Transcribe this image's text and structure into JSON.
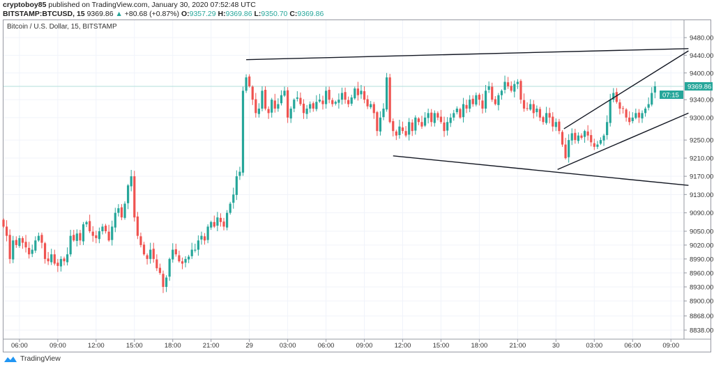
{
  "header": {
    "author": "cryptoboy85",
    "published_text": "published on TradingView.com, January 30, 2020 07:52:48 UTC",
    "symbol": "BITSTAMP:BTCUSD, 15",
    "last": "9369.86",
    "change": "+80.68 (+0.87%)",
    "o_label": "O:",
    "o": "9357.29",
    "h_label": "H:",
    "h": "9369.86",
    "l_label": "L:",
    "l": "9350.70",
    "c_label": "C:",
    "c": "9369.86"
  },
  "legend": "Bitcoin / U.S. Dollar, 15, BITSTAMP",
  "price_label": {
    "value": "9369.86",
    "countdown": "07:15",
    "color": "#26a69a"
  },
  "colors": {
    "up": "#26a69a",
    "down": "#ef5350",
    "grid": "#f0f3fa",
    "trendline": "#131722"
  },
  "footer": {
    "brand": "TradingView"
  },
  "chart_data": {
    "type": "candlestick",
    "interval": "15",
    "yscale": "log",
    "ylim": [
      8838,
      9480
    ],
    "y_ticks": [
      "9480.00",
      "9440.00",
      "9400.00",
      "9340.00",
      "9300.00",
      "9250.00",
      "9210.00",
      "9170.00",
      "9130.00",
      "9090.00",
      "9050.00",
      "9020.00",
      "8990.00",
      "8960.00",
      "8930.00",
      "8900.00",
      "8868.00",
      "8838.00"
    ],
    "x_ticks": [
      "06:00",
      "09:00",
      "12:00",
      "15:00",
      "18:00",
      "21:00",
      "29",
      "03:00",
      "06:00",
      "09:00",
      "12:00",
      "15:00",
      "18:00",
      "21:00",
      "30",
      "03:00",
      "06:00",
      "09:00"
    ],
    "first_candle_time": "04:45",
    "last_price": 9369.86,
    "closes": [
      9060,
      9040,
      8990,
      9030,
      9020,
      9035,
      9025,
      9015,
      9000,
      9010,
      9030,
      9040,
      9025,
      8990,
      8985,
      9000,
      8980,
      8975,
      8990,
      8985,
      9000,
      9040,
      9030,
      9045,
      9030,
      9065,
      9070,
      9050,
      9040,
      9035,
      9050,
      9060,
      9050,
      9030,
      9060,
      9090,
      9100,
      9080,
      9110,
      9150,
      9170,
      9080,
      9040,
      9020,
      9000,
      8990,
      9010,
      8990,
      8970,
      8960,
      8930,
      8950,
      8990,
      9010,
      9000,
      8985,
      8980,
      8990,
      8995,
      9010,
      9010,
      9030,
      9040,
      9030,
      9060,
      9070,
      9060,
      9080,
      9070,
      9060,
      9090,
      9110,
      9130,
      9170,
      9180,
      9360,
      9390,
      9370,
      9340,
      9310,
      9320,
      9360,
      9320,
      9310,
      9340,
      9320,
      9330,
      9350,
      9360,
      9300,
      9320,
      9340,
      9345,
      9330,
      9310,
      9320,
      9330,
      9320,
      9335,
      9340,
      9330,
      9360,
      9340,
      9330,
      9335,
      9340,
      9355,
      9340,
      9330,
      9345,
      9365,
      9350,
      9360,
      9340,
      9325,
      9330,
      9310,
      9270,
      9300,
      9320,
      9390,
      9290,
      9270,
      9260,
      9280,
      9270,
      9260,
      9290,
      9270,
      9300,
      9290,
      9280,
      9300,
      9310,
      9290,
      9310,
      9300,
      9290,
      9270,
      9290,
      9300,
      9310,
      9320,
      9300,
      9330,
      9320,
      9340,
      9330,
      9350,
      9340,
      9320,
      9360,
      9370,
      9340,
      9330,
      9350,
      9360,
      9380,
      9370,
      9360,
      9375,
      9380,
      9340,
      9320,
      9320,
      9330,
      9310,
      9320,
      9300,
      9290,
      9310,
      9300,
      9280,
      9290,
      9270,
      9240,
      9210,
      9250,
      9265,
      9250,
      9260,
      9255,
      9270,
      9260,
      9245,
      9235,
      9240,
      9250,
      9260,
      9290,
      9340,
      9355,
      9335,
      9320,
      9320,
      9300,
      9290,
      9300,
      9310,
      9300,
      9310,
      9320,
      9330,
      9355,
      9369.86
    ],
    "trendlines": [
      {
        "from": [
          76,
          9430
        ],
        "to": [
          214.5,
          9455
        ]
      },
      {
        "from": [
          122,
          9215
        ],
        "to": [
          214.5,
          9150
        ]
      },
      {
        "from": [
          175.5,
          9275
        ],
        "to": [
          214.5,
          9450
        ]
      },
      {
        "from": [
          173.5,
          9185
        ],
        "to": [
          214.5,
          9310
        ]
      }
    ]
  }
}
